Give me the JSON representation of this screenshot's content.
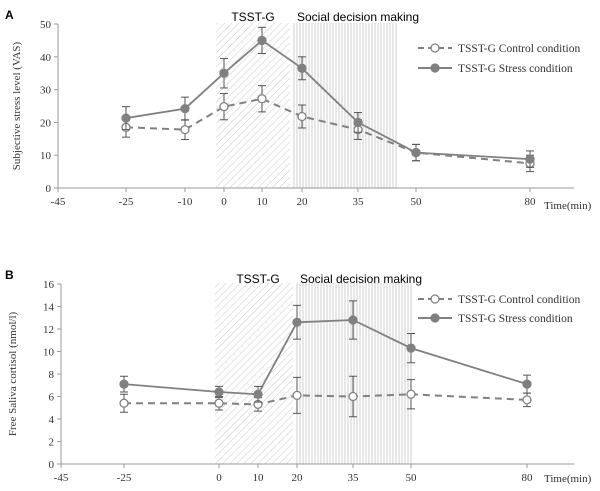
{
  "colors": {
    "line": "#808080",
    "axis": "#9a9a9a",
    "text": "#333333",
    "hatch": "#c8c8c8",
    "vstripe": "#cfcfcf"
  },
  "chart_data": [
    {
      "panel": "A",
      "type": "line",
      "ylabel": "Subjective stress level (VAS)",
      "xlabel": "Time(min)",
      "ylim": [
        0,
        50
      ],
      "yticks": [
        0,
        10,
        20,
        30,
        40,
        50
      ],
      "xlim": [
        -45,
        80
      ],
      "xticks": [
        -45,
        -25,
        -10,
        0,
        10,
        20,
        35,
        50,
        80
      ],
      "xtick_labels": [
        "-45",
        "-25",
        "-10",
        "0",
        "10",
        "20",
        "35",
        "50",
        "80"
      ],
      "region_labels": {
        "stress": "TSST-G",
        "decision": "Social decision making"
      },
      "stress_region": [
        -2,
        17
      ],
      "decision_region": [
        18,
        45
      ],
      "legend": "top-right",
      "series": [
        {
          "name": "TSST-G Control condition",
          "style": "dashed-open",
          "x": [
            -25,
            -10,
            0,
            10,
            20,
            35,
            50,
            80
          ],
          "values": [
            18.5,
            17.8,
            24.8,
            27.2,
            21.8,
            17.8,
            10.8,
            7.5
          ],
          "err": [
            3.0,
            3.0,
            4.0,
            4.0,
            3.5,
            3.0,
            2.5,
            2.5
          ]
        },
        {
          "name": "TSST-G Stress condition",
          "style": "solid-filled",
          "x": [
            -25,
            -10,
            0,
            10,
            20,
            35,
            50,
            80
          ],
          "values": [
            21.3,
            24.2,
            35.0,
            45.0,
            36.5,
            20.0,
            10.8,
            8.8
          ],
          "err": [
            3.5,
            3.5,
            4.5,
            4.0,
            3.5,
            3.0,
            2.5,
            2.5
          ]
        }
      ]
    },
    {
      "panel": "B",
      "type": "line",
      "ylabel": "Free Saliva cortisol (nmol/l)",
      "xlabel": "Time(min)",
      "ylim": [
        0,
        16
      ],
      "yticks": [
        0,
        2,
        4,
        6,
        8,
        10,
        12,
        14,
        16
      ],
      "xlim": [
        -45,
        80
      ],
      "xticks": [
        -45,
        -25,
        0,
        10,
        20,
        35,
        50,
        80
      ],
      "xtick_labels": [
        "-45",
        "-25",
        "0",
        "10",
        "20",
        "35",
        "50",
        "80"
      ],
      "region_labels": {
        "stress": "TSST-G",
        "decision": "Social decision making"
      },
      "stress_region": [
        -1,
        19
      ],
      "decision_region": [
        20,
        50
      ],
      "legend": "top-right",
      "series": [
        {
          "name": "TSST-G Control condition",
          "style": "dashed-open",
          "x": [
            -25,
            0,
            10,
            20,
            35,
            50,
            80
          ],
          "values": [
            5.4,
            5.4,
            5.3,
            6.1,
            6.0,
            6.2,
            5.7
          ],
          "err": [
            0.8,
            0.6,
            0.6,
            1.6,
            1.8,
            1.3,
            0.6
          ]
        },
        {
          "name": "TSST-G Stress condition",
          "style": "solid-filled",
          "x": [
            -25,
            0,
            10,
            20,
            35,
            50,
            80
          ],
          "values": [
            7.1,
            6.4,
            6.2,
            12.6,
            12.8,
            10.3,
            7.1
          ],
          "err": [
            0.7,
            0.5,
            0.7,
            1.5,
            1.7,
            1.3,
            0.8
          ]
        }
      ]
    }
  ]
}
